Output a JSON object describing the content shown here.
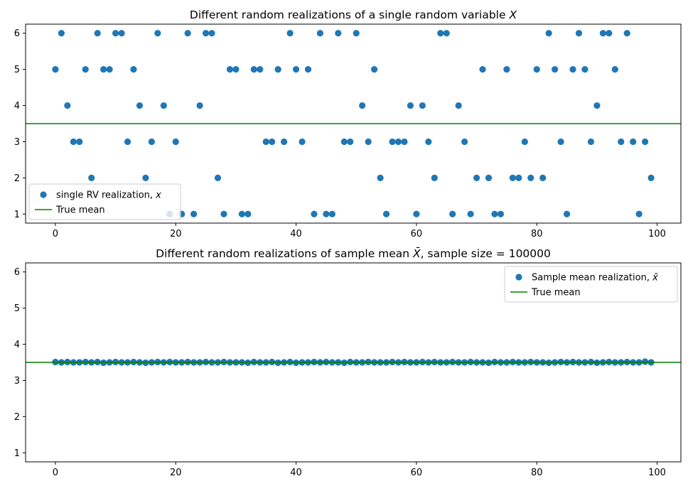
{
  "colors": {
    "points": "#1f77b4",
    "mean_line": "#008000"
  },
  "chart_data": [
    {
      "type": "scatter",
      "title_main": "Different random realizations of a single random variable ",
      "title_var": "X",
      "xlim": [
        -4.95,
        103.95
      ],
      "ylim": [
        0.75,
        6.25
      ],
      "xticks": [
        0,
        20,
        40,
        60,
        80,
        100
      ],
      "yticks": [
        1,
        2,
        3,
        4,
        5,
        6
      ],
      "legend_position": "lower-left",
      "series": [
        {
          "name": "single RV realization, ",
          "name_var": "x",
          "kind": "scatter",
          "x": [
            0,
            1,
            2,
            3,
            4,
            5,
            6,
            7,
            8,
            9,
            10,
            11,
            12,
            13,
            14,
            15,
            16,
            17,
            18,
            19,
            20,
            21,
            22,
            23,
            24,
            25,
            26,
            27,
            28,
            29,
            30,
            31,
            32,
            33,
            34,
            35,
            36,
            37,
            38,
            39,
            40,
            41,
            42,
            43,
            44,
            45,
            46,
            47,
            48,
            49,
            50,
            51,
            52,
            53,
            54,
            55,
            56,
            57,
            58,
            59,
            60,
            61,
            62,
            63,
            64,
            65,
            66,
            67,
            68,
            69,
            70,
            71,
            72,
            73,
            74,
            75,
            76,
            77,
            78,
            79,
            80,
            81,
            82,
            83,
            84,
            85,
            86,
            87,
            88,
            89,
            90,
            91,
            92,
            93,
            94,
            95,
            96,
            97,
            98,
            99
          ],
          "y": [
            5,
            6,
            4,
            3,
            3,
            5,
            2,
            6,
            5,
            5,
            6,
            6,
            3,
            5,
            4,
            2,
            3,
            6,
            4,
            1,
            3,
            1,
            6,
            1,
            4,
            6,
            6,
            2,
            1,
            5,
            5,
            1,
            1,
            5,
            5,
            3,
            3,
            5,
            3,
            6,
            5,
            3,
            5,
            1,
            6,
            1,
            1,
            6,
            3,
            3,
            6,
            4,
            3,
            5,
            2,
            1,
            3,
            3,
            3,
            4,
            1,
            4,
            3,
            2,
            6,
            6,
            1,
            4,
            3,
            1,
            2,
            5,
            2,
            1,
            1,
            5,
            2,
            2,
            3,
            2,
            5,
            2,
            6,
            5,
            3,
            1,
            5,
            6,
            5,
            3,
            4,
            6,
            6,
            5,
            3,
            6,
            3,
            1,
            3,
            2
          ]
        },
        {
          "name": "True mean",
          "kind": "hline",
          "y": 3.5
        }
      ]
    },
    {
      "type": "scatter",
      "title_main": "Different random realizations of sample mean ",
      "title_var": "X̄",
      "title_suffix": ", sample size = 100000",
      "xlim": [
        -4.95,
        103.95
      ],
      "ylim": [
        0.75,
        6.25
      ],
      "xticks": [
        0,
        20,
        40,
        60,
        80,
        100
      ],
      "yticks": [
        1,
        2,
        3,
        4,
        5,
        6
      ],
      "legend_position": "upper-right",
      "series": [
        {
          "name": "Sample mean realization, ",
          "name_var": "x̄",
          "kind": "scatter",
          "x": [
            0,
            1,
            2,
            3,
            4,
            5,
            6,
            7,
            8,
            9,
            10,
            11,
            12,
            13,
            14,
            15,
            16,
            17,
            18,
            19,
            20,
            21,
            22,
            23,
            24,
            25,
            26,
            27,
            28,
            29,
            30,
            31,
            32,
            33,
            34,
            35,
            36,
            37,
            38,
            39,
            40,
            41,
            42,
            43,
            44,
            45,
            46,
            47,
            48,
            49,
            50,
            51,
            52,
            53,
            54,
            55,
            56,
            57,
            58,
            59,
            60,
            61,
            62,
            63,
            64,
            65,
            66,
            67,
            68,
            69,
            70,
            71,
            72,
            73,
            74,
            75,
            76,
            77,
            78,
            79,
            80,
            81,
            82,
            83,
            84,
            85,
            86,
            87,
            88,
            89,
            90,
            91,
            92,
            93,
            94,
            95,
            96,
            97,
            98,
            99
          ],
          "y": [
            3.51,
            3.5,
            3.51,
            3.5,
            3.5,
            3.51,
            3.5,
            3.51,
            3.49,
            3.5,
            3.51,
            3.5,
            3.5,
            3.51,
            3.5,
            3.49,
            3.5,
            3.51,
            3.5,
            3.51,
            3.5,
            3.5,
            3.51,
            3.5,
            3.5,
            3.51,
            3.5,
            3.5,
            3.51,
            3.5,
            3.5,
            3.5,
            3.49,
            3.51,
            3.5,
            3.5,
            3.51,
            3.49,
            3.5,
            3.51,
            3.49,
            3.5,
            3.5,
            3.51,
            3.5,
            3.51,
            3.5,
            3.5,
            3.49,
            3.51,
            3.5,
            3.5,
            3.51,
            3.5,
            3.5,
            3.5,
            3.51,
            3.5,
            3.51,
            3.5,
            3.5,
            3.51,
            3.5,
            3.51,
            3.5,
            3.5,
            3.51,
            3.5,
            3.5,
            3.51,
            3.5,
            3.5,
            3.49,
            3.51,
            3.5,
            3.5,
            3.51,
            3.5,
            3.5,
            3.51,
            3.5,
            3.5,
            3.49,
            3.5,
            3.51,
            3.5,
            3.51,
            3.5,
            3.5,
            3.51,
            3.49,
            3.5,
            3.51,
            3.5,
            3.5,
            3.51,
            3.5,
            3.5,
            3.52,
            3.5
          ]
        },
        {
          "name": "True mean",
          "kind": "hline",
          "y": 3.5
        }
      ]
    }
  ]
}
